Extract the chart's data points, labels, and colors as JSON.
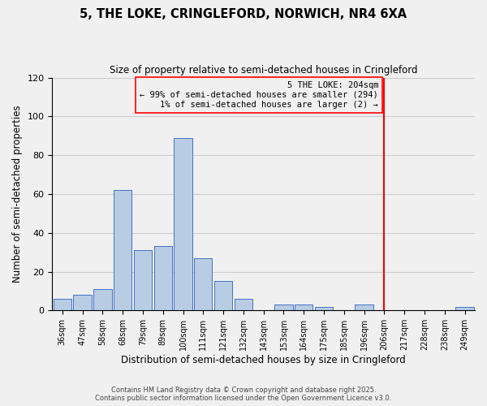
{
  "title": "5, THE LOKE, CRINGLEFORD, NORWICH, NR4 6XA",
  "subtitle": "Size of property relative to semi-detached houses in Cringleford",
  "xlabel": "Distribution of semi-detached houses by size in Cringleford",
  "ylabel": "Number of semi-detached properties",
  "bin_labels": [
    "36sqm",
    "47sqm",
    "58sqm",
    "68sqm",
    "79sqm",
    "89sqm",
    "100sqm",
    "111sqm",
    "121sqm",
    "132sqm",
    "143sqm",
    "153sqm",
    "164sqm",
    "175sqm",
    "185sqm",
    "196sqm",
    "206sqm",
    "217sqm",
    "228sqm",
    "238sqm",
    "249sqm"
  ],
  "bar_heights": [
    6,
    8,
    11,
    62,
    31,
    33,
    89,
    27,
    15,
    6,
    0,
    3,
    3,
    2,
    0,
    3,
    0,
    0,
    0,
    0,
    2
  ],
  "bar_color": "#b8cce4",
  "bar_edge_color": "#4472c4",
  "reference_line_color": "red",
  "annotation_title": "5 THE LOKE: 204sqm",
  "annotation_line1": "← 99% of semi-detached houses are smaller (294)",
  "annotation_line2": "1% of semi-detached houses are larger (2) →",
  "ylim": [
    0,
    120
  ],
  "yticks": [
    0,
    20,
    40,
    60,
    80,
    100,
    120
  ],
  "footer_line1": "Contains HM Land Registry data © Crown copyright and database right 2025.",
  "footer_line2": "Contains public sector information licensed under the Open Government Licence v3.0.",
  "bg_color": "#f0f0f0",
  "grid_color": "#cccccc"
}
